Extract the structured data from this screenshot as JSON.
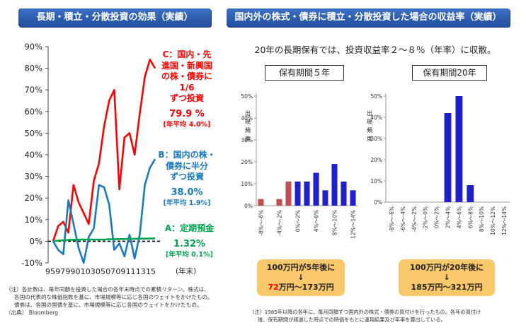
{
  "left_header": "長期・積立・分散投資の効果（実績）",
  "right_header": "国内外の株式・債券に積立・分散投資した場合の収益率（実績）",
  "right_subtitle": "20年の長期保有では、投資収益率２～８％（年率）に収散。",
  "left_annotations": {
    "red": {
      "l1": "C：国内・先",
      "l2": "進国・新興国",
      "l3": "の株・債券に",
      "l4": "1/6",
      "l5": "ずつ投資",
      "pct": "79.9 %",
      "annual": "[年平均 4.0%]"
    },
    "blue": {
      "l1": "B：国内の株・",
      "l2": "債券に半分",
      "l3": "ずつ投資",
      "pct": "38.0%",
      "annual": "[年平均 1.9%]"
    },
    "green": {
      "l1": "A：定期預金",
      "pct": "1.32%",
      "annual": "[年平均 0.1%]"
    },
    "x_unit": "(年末)"
  },
  "hist5": {
    "title": "保有期間５年",
    "ylabel": "出現頻度"
  },
  "hist20": {
    "title": "保有期間20年",
    "ylabel": "出現頻度"
  },
  "box5": {
    "line1": "100万円が5年後に",
    "arrow": "↓",
    "low": "72",
    "rest": "万円～173万円"
  },
  "box20": {
    "line1": "100万円が20年後に",
    "arrow": "↓",
    "text": "185万円～321万円"
  },
  "notes_left": [
    "（注）各計数は、毎年同額を投資した場合の各年末時点での累積リターン。株式は、",
    "各国の代表的な株価指数を基に、市場規模等に応じ各国のウェイトをかけたもの。",
    "債券は、各国の国債を基に、市場規模等に応じ各国のウェイトをかけたもの。",
    "（出典） Bloomberg"
  ],
  "notes_right": [
    "（注）1985年以降の各年に、毎月同額ずつ国内外の株式・債券の買付けを行ったもの。各年の買付け",
    "後、保有期間が経過した時点での時価をもとに運用結果及び年率を算出している。"
  ],
  "colors": {
    "red": "#ff0000",
    "blue": "#1a7abf",
    "green": "#00a651",
    "navy": "#1f1fcc",
    "brown": "#c0504d",
    "box": "#f9c86a"
  },
  "chart_data": [
    {
      "type": "line",
      "x": [
        "95",
        "96",
        "97",
        "98",
        "99",
        "00",
        "01",
        "02",
        "03",
        "04",
        "05",
        "06",
        "07",
        "08",
        "09",
        "10",
        "11",
        "12",
        "13",
        "14",
        "15"
      ],
      "x_tick_labels": [
        "95",
        "97",
        "99",
        "01",
        "03",
        "05",
        "07",
        "09",
        "11",
        "13",
        "15"
      ],
      "ylim": [
        -10,
        90
      ],
      "y_ticks": [
        "-10%",
        "0%",
        "10%",
        "20%",
        "30%",
        "40%",
        "50%",
        "60%",
        "70%",
        "80%",
        "90%"
      ],
      "series": [
        {
          "color": "red",
          "values": [
            0,
            7,
            9,
            4,
            26,
            18,
            13,
            8,
            28,
            36,
            53,
            65,
            70,
            24,
            48,
            50,
            40,
            59,
            76,
            84,
            80
          ]
        },
        {
          "color": "blue",
          "values": [
            0,
            -4,
            -6,
            19,
            8,
            -3,
            -10,
            2,
            6,
            26,
            25,
            17,
            -4,
            -1,
            -7,
            3,
            -8,
            3,
            26,
            34,
            38
          ]
        },
        {
          "color": "green",
          "values": [
            0,
            0.3,
            0.5,
            0.6,
            0.7,
            0.8,
            0.8,
            0.8,
            0.8,
            0.8,
            0.8,
            0.9,
            0.9,
            1.0,
            1.0,
            1.1,
            1.1,
            1.2,
            1.2,
            1.3,
            1.32
          ]
        }
      ]
    },
    {
      "type": "bar",
      "categories": [
        "-8%〜-6%",
        "-6%〜-4%",
        "-4%〜-2%",
        "-2%〜0%",
        "0%〜2%",
        "2%〜4%",
        "4%〜6%",
        "6%〜8%",
        "8%〜10%",
        "10%〜12%",
        "12%〜14%"
      ],
      "x_tick_labels": [
        "-8%〜-6%",
        "-4%〜-2%",
        "0%〜2%",
        "4%〜6%",
        "8%〜10%",
        "12%〜14%"
      ],
      "values": [
        3,
        0,
        3,
        11,
        11,
        11,
        15,
        7,
        19,
        11,
        7
      ],
      "bar_colors": [
        "brown",
        "brown",
        "brown",
        "brown",
        "navy",
        "navy",
        "navy",
        "navy",
        "navy",
        "navy",
        "navy"
      ],
      "ylim": [
        0,
        50
      ],
      "y_ticks": [
        "0%",
        "10%",
        "20%",
        "30%",
        "40%",
        "50%"
      ]
    },
    {
      "type": "bar",
      "categories": [
        "-8%〜-6%",
        "-6%〜-4%",
        "-4%〜-2%",
        "-2%〜0%",
        "0%〜2%",
        "2%〜4%",
        "4%〜6%",
        "6%〜8%",
        "8%〜10%",
        "10%〜12%",
        "12%〜14%"
      ],
      "x_tick_labels": [
        "-8%〜-6%",
        "-6%〜-4%",
        "-4%〜-2%",
        "-2%〜0%",
        "0%〜2%",
        "2%〜4%",
        "4%〜6%",
        "6%〜8%",
        "8%〜10%",
        "10%〜12%",
        "12%〜14%"
      ],
      "values": [
        0,
        0,
        0,
        0,
        0,
        42,
        50,
        8,
        0,
        0,
        0
      ],
      "bar_colors": [
        "navy",
        "navy",
        "navy",
        "navy",
        "navy",
        "navy",
        "navy",
        "navy",
        "navy",
        "navy",
        "navy"
      ],
      "ylim": [
        0,
        50
      ],
      "y_ticks": [
        "0%",
        "10%",
        "20%",
        "30%",
        "40%",
        "50%"
      ]
    }
  ]
}
